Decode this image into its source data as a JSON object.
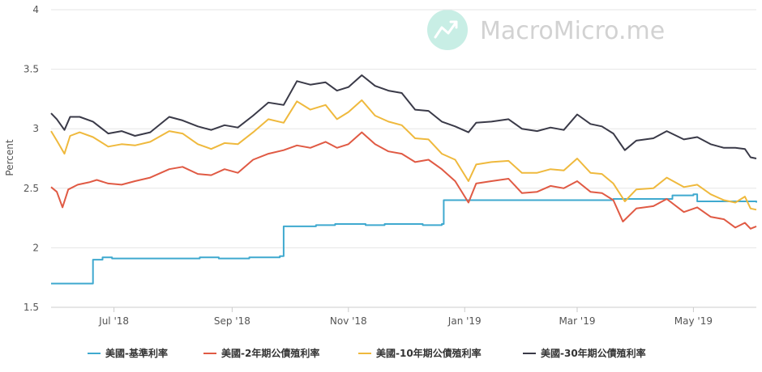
{
  "watermark": {
    "text": "MacroMicro.me"
  },
  "chart_data": {
    "type": "line",
    "ylabel": "Percent",
    "ylim": [
      1.5,
      4
    ],
    "yticks": [
      "1.5",
      "2",
      "2.5",
      "3",
      "3.5",
      "4"
    ],
    "xlim": [
      "2018-05-29",
      "2019-06-03"
    ],
    "xticks": [
      {
        "date": "2018-07-01",
        "label": "Jul '18"
      },
      {
        "date": "2018-09-01",
        "label": "Sep '18"
      },
      {
        "date": "2018-11-01",
        "label": "Nov '18"
      },
      {
        "date": "2019-01-01",
        "label": "Jan '19"
      },
      {
        "date": "2019-03-01",
        "label": "Mar '19"
      },
      {
        "date": "2019-05-01",
        "label": "May '19"
      }
    ],
    "grid": "horizontal",
    "legend": "bottom",
    "series": [
      {
        "name": "美國-基準利率",
        "color": "#3fa9cf",
        "step": true,
        "points": [
          [
            "2018-05-29",
            1.7
          ],
          [
            "2018-06-20",
            1.9
          ],
          [
            "2018-06-25",
            1.92
          ],
          [
            "2018-06-30",
            1.91
          ],
          [
            "2018-08-15",
            1.92
          ],
          [
            "2018-08-25",
            1.91
          ],
          [
            "2018-09-10",
            1.92
          ],
          [
            "2018-09-26",
            1.93
          ],
          [
            "2018-09-28",
            2.18
          ],
          [
            "2018-10-15",
            2.19
          ],
          [
            "2018-10-25",
            2.2
          ],
          [
            "2018-11-10",
            2.19
          ],
          [
            "2018-11-20",
            2.2
          ],
          [
            "2018-12-10",
            2.19
          ],
          [
            "2018-12-20",
            2.2
          ],
          [
            "2018-12-21",
            2.4
          ],
          [
            "2019-03-20",
            2.41
          ],
          [
            "2019-04-20",
            2.44
          ],
          [
            "2019-05-01",
            2.45
          ],
          [
            "2019-05-03",
            2.39
          ],
          [
            "2019-06-03",
            2.38
          ]
        ]
      },
      {
        "name": "美國-2年期公債殖利率",
        "color": "#e05a44",
        "points": [
          [
            "2018-05-29",
            2.51
          ],
          [
            "2018-06-01",
            2.47
          ],
          [
            "2018-06-04",
            2.34
          ],
          [
            "2018-06-07",
            2.49
          ],
          [
            "2018-06-12",
            2.53
          ],
          [
            "2018-06-18",
            2.55
          ],
          [
            "2018-06-22",
            2.57
          ],
          [
            "2018-06-28",
            2.54
          ],
          [
            "2018-07-05",
            2.53
          ],
          [
            "2018-07-12",
            2.56
          ],
          [
            "2018-07-20",
            2.59
          ],
          [
            "2018-07-30",
            2.66
          ],
          [
            "2018-08-06",
            2.68
          ],
          [
            "2018-08-14",
            2.62
          ],
          [
            "2018-08-21",
            2.61
          ],
          [
            "2018-08-28",
            2.66
          ],
          [
            "2018-09-04",
            2.63
          ],
          [
            "2018-09-12",
            2.74
          ],
          [
            "2018-09-20",
            2.79
          ],
          [
            "2018-09-28",
            2.82
          ],
          [
            "2018-10-05",
            2.86
          ],
          [
            "2018-10-12",
            2.84
          ],
          [
            "2018-10-20",
            2.89
          ],
          [
            "2018-10-26",
            2.84
          ],
          [
            "2018-11-01",
            2.87
          ],
          [
            "2018-11-08",
            2.97
          ],
          [
            "2018-11-15",
            2.87
          ],
          [
            "2018-11-22",
            2.81
          ],
          [
            "2018-11-29",
            2.79
          ],
          [
            "2018-12-06",
            2.72
          ],
          [
            "2018-12-13",
            2.74
          ],
          [
            "2018-12-20",
            2.66
          ],
          [
            "2018-12-27",
            2.56
          ],
          [
            "2019-01-03",
            2.38
          ],
          [
            "2019-01-07",
            2.54
          ],
          [
            "2019-01-15",
            2.56
          ],
          [
            "2019-01-24",
            2.58
          ],
          [
            "2019-01-31",
            2.46
          ],
          [
            "2019-02-08",
            2.47
          ],
          [
            "2019-02-15",
            2.52
          ],
          [
            "2019-02-22",
            2.5
          ],
          [
            "2019-03-01",
            2.56
          ],
          [
            "2019-03-08",
            2.47
          ],
          [
            "2019-03-14",
            2.46
          ],
          [
            "2019-03-20",
            2.4
          ],
          [
            "2019-03-25",
            2.22
          ],
          [
            "2019-04-01",
            2.33
          ],
          [
            "2019-04-10",
            2.35
          ],
          [
            "2019-04-17",
            2.41
          ],
          [
            "2019-04-26",
            2.3
          ],
          [
            "2019-05-03",
            2.34
          ],
          [
            "2019-05-10",
            2.26
          ],
          [
            "2019-05-17",
            2.24
          ],
          [
            "2019-05-23",
            2.17
          ],
          [
            "2019-05-28",
            2.21
          ],
          [
            "2019-05-31",
            2.16
          ],
          [
            "2019-06-03",
            2.18
          ]
        ]
      },
      {
        "name": "美國-10年期公債殖利率",
        "color": "#efb93d",
        "points": [
          [
            "2018-05-29",
            2.98
          ],
          [
            "2018-06-01",
            2.9
          ],
          [
            "2018-06-05",
            2.79
          ],
          [
            "2018-06-08",
            2.94
          ],
          [
            "2018-06-13",
            2.97
          ],
          [
            "2018-06-20",
            2.93
          ],
          [
            "2018-06-28",
            2.85
          ],
          [
            "2018-07-05",
            2.87
          ],
          [
            "2018-07-12",
            2.86
          ],
          [
            "2018-07-20",
            2.89
          ],
          [
            "2018-07-30",
            2.98
          ],
          [
            "2018-08-06",
            2.96
          ],
          [
            "2018-08-14",
            2.87
          ],
          [
            "2018-08-21",
            2.83
          ],
          [
            "2018-08-28",
            2.88
          ],
          [
            "2018-09-04",
            2.87
          ],
          [
            "2018-09-12",
            2.97
          ],
          [
            "2018-09-20",
            3.08
          ],
          [
            "2018-09-28",
            3.05
          ],
          [
            "2018-10-05",
            3.23
          ],
          [
            "2018-10-12",
            3.16
          ],
          [
            "2018-10-20",
            3.2
          ],
          [
            "2018-10-26",
            3.08
          ],
          [
            "2018-11-01",
            3.14
          ],
          [
            "2018-11-08",
            3.24
          ],
          [
            "2018-11-15",
            3.11
          ],
          [
            "2018-11-22",
            3.06
          ],
          [
            "2018-11-29",
            3.03
          ],
          [
            "2018-12-06",
            2.92
          ],
          [
            "2018-12-13",
            2.91
          ],
          [
            "2018-12-20",
            2.79
          ],
          [
            "2018-12-27",
            2.74
          ],
          [
            "2019-01-03",
            2.56
          ],
          [
            "2019-01-07",
            2.7
          ],
          [
            "2019-01-15",
            2.72
          ],
          [
            "2019-01-24",
            2.73
          ],
          [
            "2019-01-31",
            2.63
          ],
          [
            "2019-02-08",
            2.63
          ],
          [
            "2019-02-15",
            2.66
          ],
          [
            "2019-02-22",
            2.65
          ],
          [
            "2019-03-01",
            2.75
          ],
          [
            "2019-03-08",
            2.63
          ],
          [
            "2019-03-14",
            2.62
          ],
          [
            "2019-03-20",
            2.54
          ],
          [
            "2019-03-26",
            2.39
          ],
          [
            "2019-04-01",
            2.49
          ],
          [
            "2019-04-10",
            2.5
          ],
          [
            "2019-04-17",
            2.59
          ],
          [
            "2019-04-26",
            2.51
          ],
          [
            "2019-05-03",
            2.53
          ],
          [
            "2019-05-10",
            2.45
          ],
          [
            "2019-05-17",
            2.4
          ],
          [
            "2019-05-23",
            2.38
          ],
          [
            "2019-05-28",
            2.43
          ],
          [
            "2019-05-31",
            2.33
          ],
          [
            "2019-06-03",
            2.32
          ]
        ]
      },
      {
        "name": "美國-30年期公債殖利率",
        "color": "#3a3a48",
        "points": [
          [
            "2018-05-29",
            3.13
          ],
          [
            "2018-06-01",
            3.08
          ],
          [
            "2018-06-05",
            2.99
          ],
          [
            "2018-06-08",
            3.1
          ],
          [
            "2018-06-13",
            3.1
          ],
          [
            "2018-06-20",
            3.06
          ],
          [
            "2018-06-28",
            2.96
          ],
          [
            "2018-07-05",
            2.98
          ],
          [
            "2018-07-12",
            2.94
          ],
          [
            "2018-07-20",
            2.97
          ],
          [
            "2018-07-30",
            3.1
          ],
          [
            "2018-08-06",
            3.07
          ],
          [
            "2018-08-14",
            3.02
          ],
          [
            "2018-08-21",
            2.99
          ],
          [
            "2018-08-28",
            3.03
          ],
          [
            "2018-09-04",
            3.01
          ],
          [
            "2018-09-12",
            3.11
          ],
          [
            "2018-09-20",
            3.22
          ],
          [
            "2018-09-28",
            3.2
          ],
          [
            "2018-10-05",
            3.4
          ],
          [
            "2018-10-12",
            3.37
          ],
          [
            "2018-10-20",
            3.39
          ],
          [
            "2018-10-26",
            3.32
          ],
          [
            "2018-11-01",
            3.35
          ],
          [
            "2018-11-08",
            3.45
          ],
          [
            "2018-11-15",
            3.36
          ],
          [
            "2018-11-22",
            3.32
          ],
          [
            "2018-11-29",
            3.3
          ],
          [
            "2018-12-06",
            3.16
          ],
          [
            "2018-12-13",
            3.15
          ],
          [
            "2018-12-20",
            3.06
          ],
          [
            "2018-12-27",
            3.02
          ],
          [
            "2019-01-03",
            2.97
          ],
          [
            "2019-01-07",
            3.05
          ],
          [
            "2019-01-15",
            3.06
          ],
          [
            "2019-01-24",
            3.08
          ],
          [
            "2019-01-31",
            3.0
          ],
          [
            "2019-02-08",
            2.98
          ],
          [
            "2019-02-15",
            3.01
          ],
          [
            "2019-02-22",
            2.99
          ],
          [
            "2019-03-01",
            3.12
          ],
          [
            "2019-03-08",
            3.04
          ],
          [
            "2019-03-14",
            3.02
          ],
          [
            "2019-03-20",
            2.96
          ],
          [
            "2019-03-26",
            2.82
          ],
          [
            "2019-04-01",
            2.9
          ],
          [
            "2019-04-10",
            2.92
          ],
          [
            "2019-04-17",
            2.98
          ],
          [
            "2019-04-26",
            2.91
          ],
          [
            "2019-05-03",
            2.93
          ],
          [
            "2019-05-10",
            2.87
          ],
          [
            "2019-05-17",
            2.84
          ],
          [
            "2019-05-23",
            2.84
          ],
          [
            "2019-05-28",
            2.83
          ],
          [
            "2019-05-31",
            2.76
          ],
          [
            "2019-06-03",
            2.75
          ]
        ]
      }
    ]
  }
}
